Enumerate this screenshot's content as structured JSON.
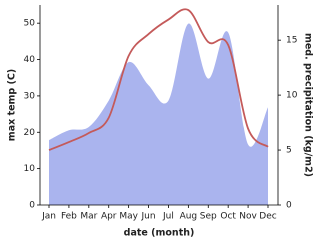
{
  "chart_data": {
    "type": "line",
    "xlabel": "date (month)",
    "ylabel": "max temp (C)",
    "y2label": "med. precipitation (kg/m2)",
    "categories": [
      "Jan",
      "Feb",
      "Mar",
      "Apr",
      "May",
      "Jun",
      "Jul",
      "Aug",
      "Sep",
      "Oct",
      "Nov",
      "Dec"
    ],
    "series": [
      {
        "color": "#aab4ee",
        "axis": "y2",
        "fill": true,
        "values": [
          5.9,
          6.8,
          7.1,
          9.5,
          13,
          10.9,
          9.5,
          16.5,
          11.5,
          15.7,
          5.5,
          8.9
        ]
      },
      {
        "color": "#c45a5a",
        "values": [
          15.1,
          17.3,
          19.8,
          24,
          41,
          47,
          51,
          53.6,
          44.8,
          44,
          21,
          16
        ]
      }
    ],
    "ylim": [
      0,
      55
    ],
    "yticks": [
      0,
      10,
      20,
      30,
      40,
      50
    ],
    "y2lim": [
      0,
      18.2
    ],
    "y2ticks": [
      0,
      5,
      10,
      15
    ]
  }
}
